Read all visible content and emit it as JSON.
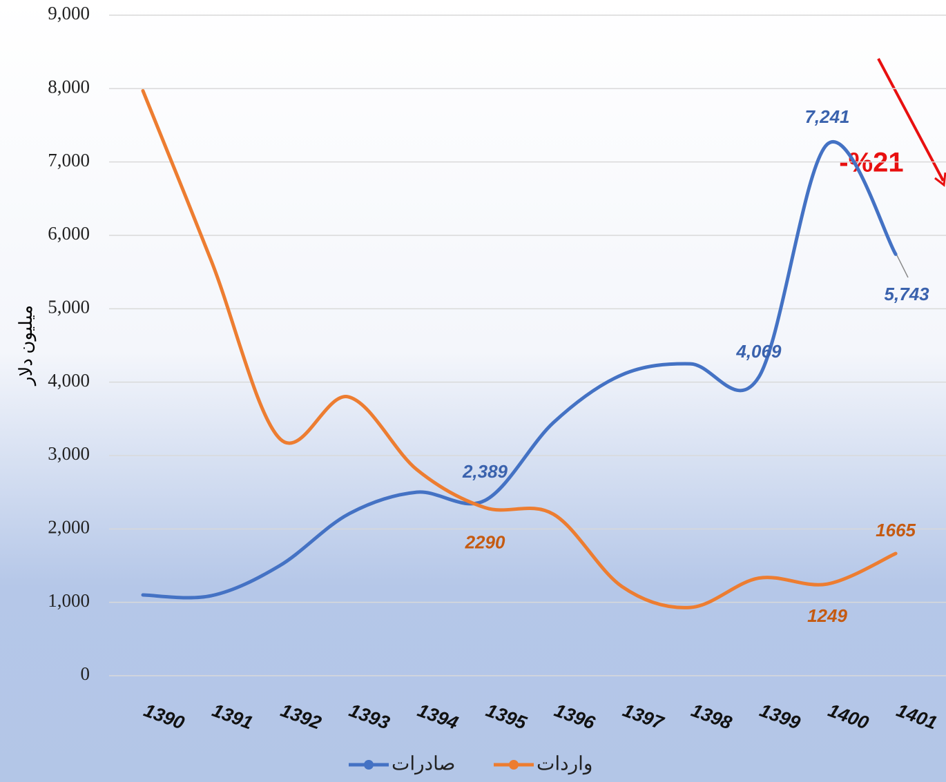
{
  "chart_data": {
    "type": "line",
    "y_label": "میلیون دلار",
    "annotation": "-%21",
    "categories": [
      "1390",
      "1391",
      "1392",
      "1393",
      "1394",
      "1395",
      "1396",
      "1397",
      "1398",
      "1399",
      "1400",
      "1401"
    ],
    "series": [
      {
        "name": "صادرات",
        "color": "#4472c4",
        "values": [
          1100,
          1090,
          1500,
          2200,
          2500,
          2389,
          3450,
          4100,
          4250,
          4069,
          7241,
          5743
        ],
        "value_labels": [
          null,
          null,
          null,
          null,
          null,
          "2,389",
          null,
          null,
          null,
          "4,069",
          "7,241",
          "5,743"
        ]
      },
      {
        "name": "واردات",
        "color": "#ed7d31",
        "values": [
          7970,
          5650,
          3230,
          3800,
          2810,
          2290,
          2200,
          1215,
          930,
          1330,
          1249,
          1665
        ],
        "value_labels": [
          null,
          null,
          null,
          null,
          null,
          "2290",
          null,
          null,
          null,
          null,
          "1249",
          "1665"
        ]
      }
    ],
    "ylim": [
      0,
      9000
    ],
    "yticks": [
      {
        "value": 0,
        "label": "0"
      },
      {
        "value": 1000,
        "label": "1,000"
      },
      {
        "value": 2000,
        "label": "2,000"
      },
      {
        "value": 3000,
        "label": "3,000"
      },
      {
        "value": 4000,
        "label": "4,000"
      },
      {
        "value": 5000,
        "label": "5,000"
      },
      {
        "value": 6000,
        "label": "6,000"
      },
      {
        "value": 7000,
        "label": "7,000"
      },
      {
        "value": 8000,
        "label": "8,000"
      },
      {
        "value": 9000,
        "label": "9,000"
      }
    ],
    "grid": true
  }
}
